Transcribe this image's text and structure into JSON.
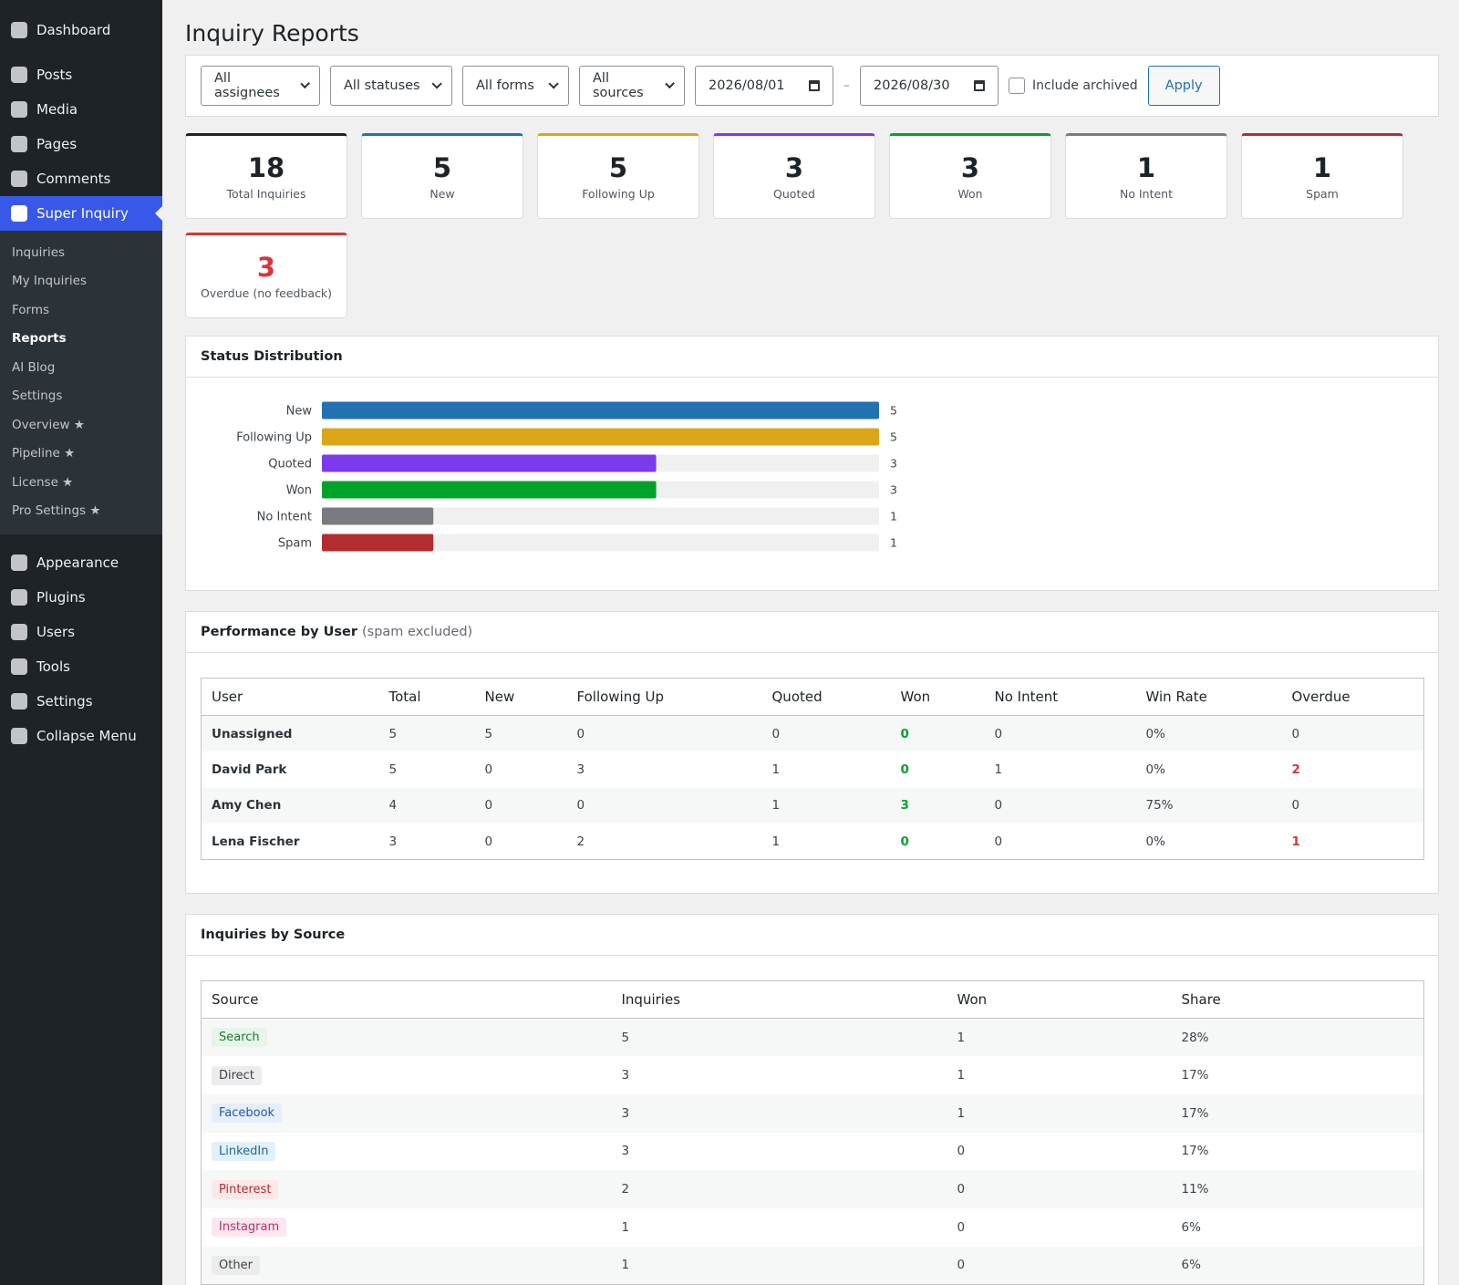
{
  "sidebar": {
    "top": [
      "Dashboard",
      "Posts",
      "Media",
      "Pages",
      "Comments"
    ],
    "active": "Super Inquiry",
    "submenu": [
      "Inquiries",
      "My Inquiries",
      "Forms",
      "Reports",
      "AI Blog",
      "Settings",
      "Overview ★",
      "Pipeline ★",
      "License ★",
      "Pro Settings ★"
    ],
    "current_submenu": 3,
    "bottom": [
      "Appearance",
      "Plugins",
      "Users",
      "Tools",
      "Settings",
      "Collapse Menu"
    ]
  },
  "page": {
    "title": "Inquiry Reports"
  },
  "filters": {
    "assignee": "All assignees",
    "status": "All statuses",
    "form": "All forms",
    "source": "All sources",
    "date_from": "2026/08/01",
    "date_separator": "–",
    "date_to": "2026/08/30",
    "archived": "Include archived",
    "apply": "Apply"
  },
  "cards": [
    {
      "value": 18,
      "label": "Total Inquiries",
      "color": "#1d2327"
    },
    {
      "value": 5,
      "label": "New",
      "color": "#2271b1"
    },
    {
      "value": 5,
      "label": "Following Up",
      "color": "#dba617"
    },
    {
      "value": 3,
      "label": "Quoted",
      "color": "#7c3aed"
    },
    {
      "value": 3,
      "label": "Won",
      "color": "#00a32a"
    },
    {
      "value": 1,
      "label": "No Intent",
      "color": "#787c82"
    },
    {
      "value": 1,
      "label": "Spam",
      "color": "#b32d2e"
    },
    {
      "value": 3,
      "label": "Overdue (no feedback)",
      "color": "#d63638",
      "value_color": "#d63638"
    }
  ],
  "chart_data": {
    "type": "bar",
    "orientation": "horizontal",
    "title": "Status Distribution",
    "categories": [
      "New",
      "Following Up",
      "Quoted",
      "Won",
      "No Intent",
      "Spam"
    ],
    "values": [
      5,
      5,
      3,
      3,
      1,
      1
    ],
    "colors": [
      "#2271b1",
      "#dba617",
      "#7c3aed",
      "#00a32a",
      "#787c82",
      "#b32d2e"
    ]
  },
  "performance": {
    "title": "Performance by User",
    "note": "(spam excluded)",
    "columns": [
      "User",
      "Total",
      "New",
      "Following Up",
      "Quoted",
      "Won",
      "No Intent",
      "Win Rate",
      "Overdue"
    ],
    "rows": [
      [
        "Unassigned",
        5,
        5,
        0,
        0,
        0,
        0,
        "0%",
        0
      ],
      [
        "David Park",
        5,
        0,
        3,
        1,
        0,
        1,
        "0%",
        2
      ],
      [
        "Amy Chen",
        4,
        0,
        0,
        1,
        3,
        0,
        "75%",
        0
      ],
      [
        "Lena Fischer",
        3,
        0,
        2,
        1,
        0,
        0,
        "0%",
        1
      ]
    ]
  },
  "sources": {
    "title": "Inquiries by Source",
    "columns": [
      "Source",
      "Inquiries",
      "Won",
      "Share"
    ],
    "rows": [
      {
        "source": "Search",
        "inquiries": 5,
        "won": 1,
        "share": "28%",
        "color": "#1e7a32",
        "background": "#e6f4ea"
      },
      {
        "source": "Direct",
        "inquiries": 3,
        "won": 1,
        "share": "17%",
        "color": "#3c434a",
        "background": "#ececec"
      },
      {
        "source": "Facebook",
        "inquiries": 3,
        "won": 1,
        "share": "17%",
        "color": "#2458a6",
        "background": "#e5eefb"
      },
      {
        "source": "LinkedIn",
        "inquiries": 3,
        "won": 0,
        "share": "17%",
        "color": "#1f6796",
        "background": "#e2f0fa"
      },
      {
        "source": "Pinterest",
        "inquiries": 2,
        "won": 0,
        "share": "11%",
        "color": "#b32d2e",
        "background": "#fde8e8"
      },
      {
        "source": "Instagram",
        "inquiries": 1,
        "won": 0,
        "share": "6%",
        "color": "#b0336f",
        "background": "#fce6ef"
      },
      {
        "source": "Other",
        "inquiries": 1,
        "won": 0,
        "share": "6%",
        "color": "#3c434a",
        "background": "#ececec"
      }
    ]
  }
}
